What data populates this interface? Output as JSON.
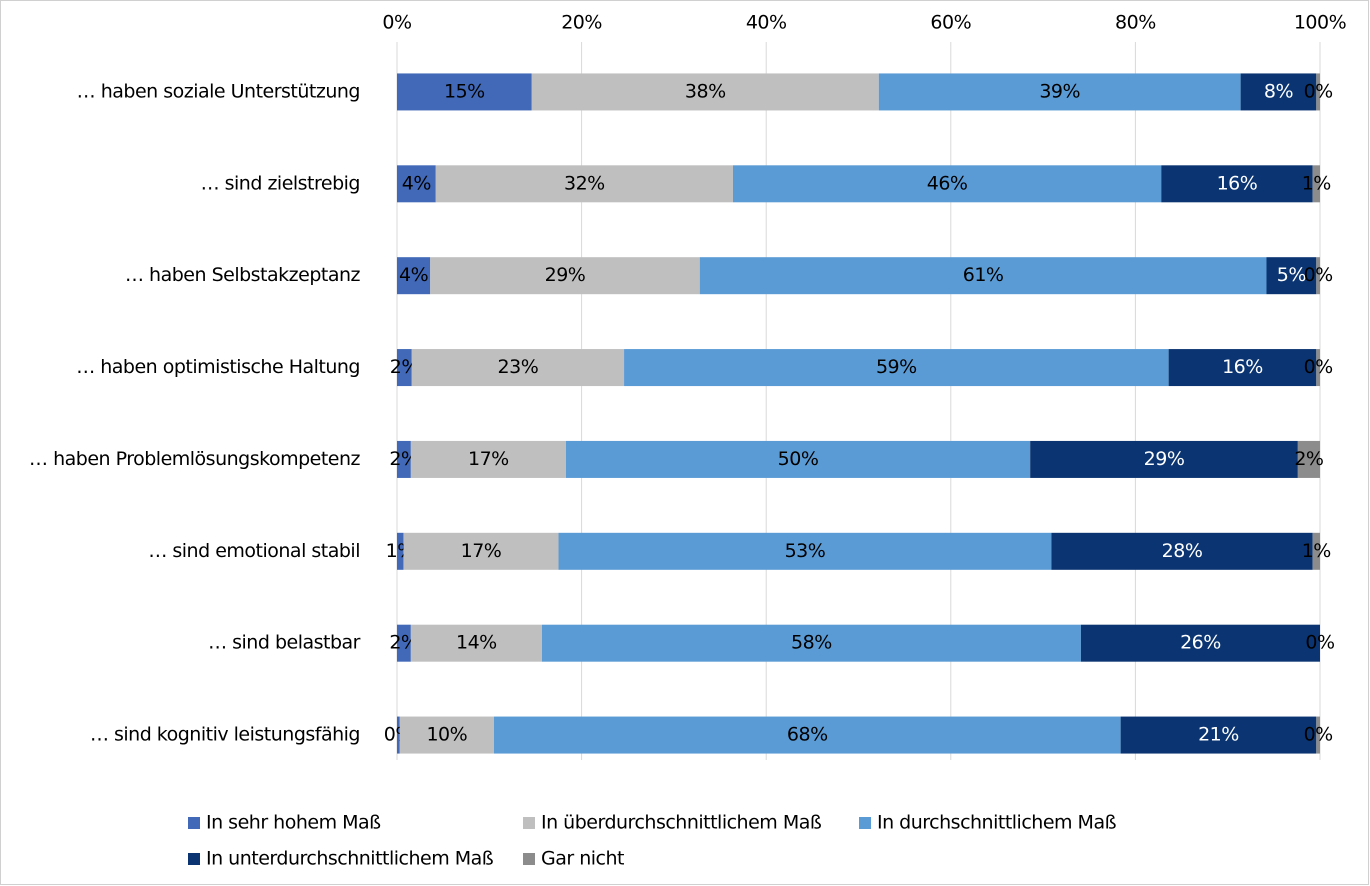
{
  "chart_data": {
    "type": "stacked-barh",
    "categories": [
      "… haben soziale Unterstützung",
      "… sind zielstrebig",
      "… haben Selbstakzeptanz",
      "… haben optimistische Haltung",
      "… haben Problemlösungskompetenz",
      "… sind emotional stabil",
      "… sind belastbar",
      "… sind kognitiv leistungsfähig"
    ],
    "series": [
      {
        "name": "In sehr hohem Maß",
        "color": "#4169b8",
        "values": [
          14.6,
          4.2,
          3.6,
          1.6,
          1.5,
          0.7,
          1.5,
          0.3
        ],
        "value_labels": [
          "15%",
          "4%",
          "4%",
          "2%",
          "2%",
          "1%",
          "2%",
          "0%"
        ]
      },
      {
        "name": "In überdurchschnittlichem Maß",
        "color": "#bfbfbf",
        "values": [
          37.6,
          32.2,
          29.2,
          23.0,
          16.8,
          16.8,
          14.2,
          10.2
        ],
        "value_labels": [
          "38%",
          "32%",
          "29%",
          "23%",
          "17%",
          "17%",
          "14%",
          "10%"
        ]
      },
      {
        "name": "In durchschnittlichem Maß",
        "color": "#5b9bd5",
        "values": [
          39.2,
          46.4,
          61.4,
          59.0,
          50.3,
          53.4,
          58.4,
          67.9
        ],
        "value_labels": [
          "39%",
          "46%",
          "61%",
          "59%",
          "50%",
          "53%",
          "58%",
          "68%"
        ]
      },
      {
        "name": "In unterdurchschnittlichem Maß",
        "color": "#0b3572",
        "values": [
          8.2,
          16.4,
          5.4,
          16.0,
          29.0,
          28.3,
          25.9,
          21.2
        ],
        "value_labels": [
          "8%",
          "16%",
          "5%",
          "16%",
          "29%",
          "28%",
          "26%",
          "21%"
        ]
      },
      {
        "name": "Gar nicht",
        "color": "#8c8c8c",
        "values": [
          0.4,
          0.8,
          0.4,
          0.4,
          2.4,
          0.8,
          0,
          0.4
        ],
        "value_labels": [
          "0%",
          "1%",
          "0%",
          "0%",
          "2%",
          "1%",
          "0%",
          "0%"
        ]
      }
    ],
    "xlim": [
      0,
      100
    ],
    "xticks": [
      {
        "value": 0,
        "label": "0%"
      },
      {
        "value": 20,
        "label": "20%"
      },
      {
        "value": 40,
        "label": "40%"
      },
      {
        "value": 60,
        "label": "60%"
      },
      {
        "value": 80,
        "label": "80%"
      },
      {
        "value": 100,
        "label": "100%"
      }
    ],
    "grid": true,
    "legend": "bottom"
  }
}
